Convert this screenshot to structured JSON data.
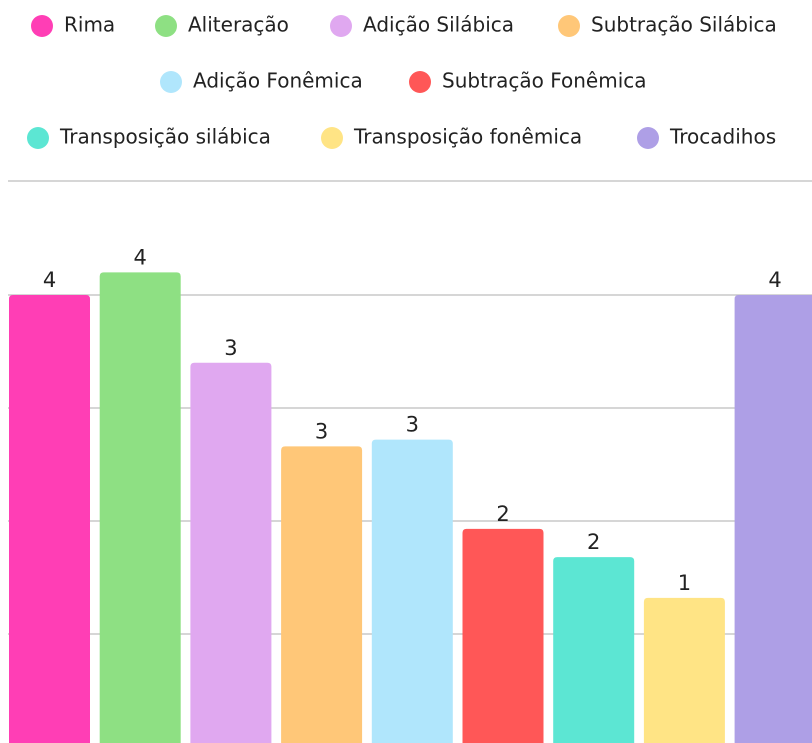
{
  "chart_data": {
    "type": "bar",
    "categories": [
      "Rima",
      "Aliteração",
      "Adição Silábica",
      "Subtração Silábica",
      "Adição Fonêmica",
      "Subtração Fonêmica",
      "Transposição silábica",
      "Transposição fonêmica",
      "Trocadihos"
    ],
    "values": [
      4,
      4.2,
      3.4,
      2.66,
      2.72,
      1.93,
      1.68,
      1.32,
      4
    ],
    "value_labels": [
      "4",
      "4",
      "3",
      "3",
      "3",
      "2",
      "2",
      "1",
      "4"
    ],
    "colors": [
      "#ff3eb5",
      "#8ee083",
      "#e0a8f0",
      "#ffc778",
      "#b0e6fc",
      "#ff5757",
      "#5ce6d3",
      "#ffe485",
      "#ae9fe6"
    ],
    "ylim": [
      0,
      5
    ],
    "yticks": [
      1,
      2,
      3,
      4
    ],
    "grid": true,
    "legend": "top"
  }
}
